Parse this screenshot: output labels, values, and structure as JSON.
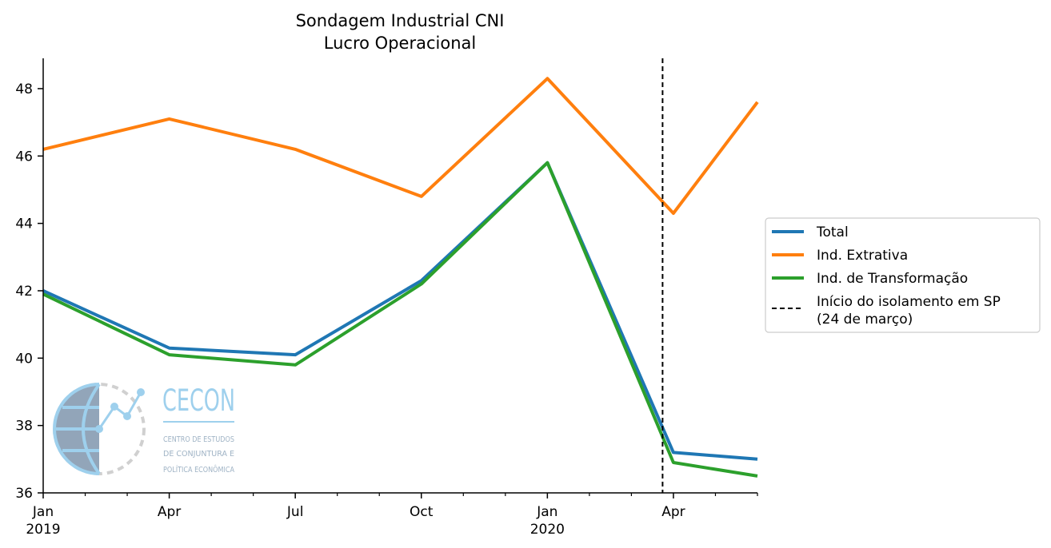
{
  "chart_data": {
    "type": "line",
    "title": "Sondagem Industrial CNI",
    "subtitle": "Lucro Operacional",
    "xlabel": "",
    "ylabel": "",
    "x": [
      "2019-01",
      "2019-04",
      "2019-07",
      "2019-10",
      "2020-01",
      "2020-04",
      "2020-06"
    ],
    "x_ticks": [
      {
        "x": "2019-01",
        "label": "Jan",
        "sublabel": "2019"
      },
      {
        "x": "2019-04",
        "label": "Apr",
        "sublabel": ""
      },
      {
        "x": "2019-07",
        "label": "Jul",
        "sublabel": ""
      },
      {
        "x": "2019-10",
        "label": "Oct",
        "sublabel": ""
      },
      {
        "x": "2020-01",
        "label": "Jan",
        "sublabel": "2020"
      },
      {
        "x": "2020-04",
        "label": "Apr",
        "sublabel": ""
      }
    ],
    "xlim": [
      "2019-01",
      "2020-06"
    ],
    "ylim": [
      36,
      48.9
    ],
    "y_ticks": [
      36,
      38,
      40,
      42,
      44,
      46,
      48
    ],
    "series": [
      {
        "name": "Total",
        "color": "#1f77b4",
        "values": [
          42.0,
          40.3,
          40.1,
          42.3,
          45.8,
          37.2,
          37.0
        ]
      },
      {
        "name": "Ind. Extrativa",
        "color": "#ff7f0e",
        "values": [
          46.2,
          47.1,
          46.2,
          44.8,
          48.3,
          44.3,
          47.6
        ]
      },
      {
        "name": "Ind. de Transformação",
        "color": "#2ca02c",
        "values": [
          41.9,
          40.1,
          39.8,
          42.2,
          45.8,
          36.9,
          36.5
        ]
      }
    ],
    "annotations": [
      {
        "type": "vline",
        "x": "2020-03-24",
        "style": "dashed",
        "color": "#000000",
        "label": [
          "Início do isolamento em SP",
          "(24 de março)"
        ]
      }
    ],
    "legend_position": "right",
    "grid": false
  },
  "logo": {
    "name": "CECON",
    "subtitle_lines": [
      "CENTRO DE ESTUDOS",
      "DE CONJUNTURA E",
      "POLÍTICA ECONÔMICA"
    ]
  }
}
